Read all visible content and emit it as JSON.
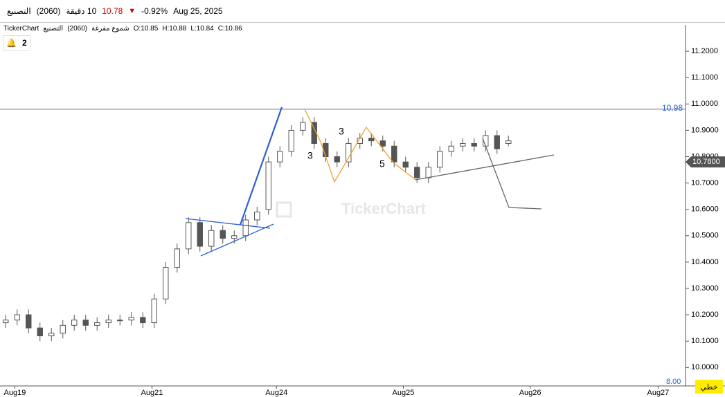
{
  "header": {
    "name": "التصنيع",
    "code": "(2060)",
    "interval": "10 دقيقة",
    "price": "10.78",
    "change": "-0.92%",
    "date": "Aug 25, 2025"
  },
  "legend": {
    "source": "TickerChart",
    "code": "(2060)",
    "name": "التصنيع",
    "style": "شموع مفرغة",
    "open": "O:10.85",
    "high": "H:10.88",
    "low": "L:10.84",
    "close": "C:10.86"
  },
  "alerts": "2",
  "watermark": "TickerChart",
  "chart_mode": "خطي",
  "chart_data": {
    "type": "candlestick",
    "color": "#555555",
    "open": [
      10.17,
      10.18,
      10.2,
      10.15,
      10.12,
      10.13,
      10.16,
      10.18,
      10.16,
      10.17,
      10.18,
      10.18,
      10.19,
      10.17,
      10.26,
      10.38,
      10.45,
      10.55,
      10.46,
      10.52,
      10.49,
      10.5,
      10.56,
      10.6,
      10.78,
      10.82,
      10.9,
      10.93,
      10.85,
      10.8,
      10.78,
      10.85,
      10.87,
      10.86,
      10.84,
      10.78,
      10.76,
      10.72,
      10.76,
      10.82,
      10.84,
      10.85,
      10.84,
      10.88,
      10.85
    ],
    "high": [
      10.2,
      10.22,
      10.22,
      10.17,
      10.15,
      10.18,
      10.2,
      10.2,
      10.19,
      10.2,
      10.2,
      10.21,
      10.21,
      10.28,
      10.4,
      10.47,
      10.57,
      10.57,
      10.54,
      10.54,
      10.52,
      10.58,
      10.61,
      10.8,
      10.84,
      10.92,
      10.95,
      10.95,
      10.87,
      10.82,
      10.87,
      10.89,
      10.89,
      10.88,
      10.86,
      10.8,
      10.78,
      10.78,
      10.84,
      10.86,
      10.87,
      10.87,
      10.9,
      10.9,
      10.88
    ],
    "low": [
      10.15,
      10.16,
      10.13,
      10.1,
      10.1,
      10.11,
      10.14,
      10.14,
      10.14,
      10.15,
      10.16,
      10.16,
      10.15,
      10.15,
      10.24,
      10.36,
      10.43,
      10.44,
      10.44,
      10.47,
      10.47,
      10.48,
      10.54,
      10.58,
      10.76,
      10.8,
      10.88,
      10.83,
      10.78,
      10.76,
      10.76,
      10.83,
      10.84,
      10.82,
      10.76,
      10.74,
      10.7,
      10.7,
      10.74,
      10.8,
      10.82,
      10.82,
      10.82,
      10.81,
      10.84
    ],
    "close": [
      10.18,
      10.2,
      10.15,
      10.12,
      10.13,
      10.16,
      10.18,
      10.16,
      10.17,
      10.18,
      10.18,
      10.19,
      10.17,
      10.26,
      10.38,
      10.45,
      10.55,
      10.46,
      10.52,
      10.49,
      10.5,
      10.56,
      10.59,
      10.78,
      10.82,
      10.9,
      10.93,
      10.85,
      10.8,
      10.78,
      10.85,
      10.87,
      10.86,
      10.84,
      10.78,
      10.76,
      10.72,
      10.76,
      10.82,
      10.84,
      10.85,
      10.84,
      10.88,
      10.83,
      10.86
    ],
    "xlim": [
      -0.5,
      59.5
    ],
    "xticks": [
      {
        "value": 0.8,
        "label": "Aug19"
      },
      {
        "value": 12.8,
        "label": "Aug21"
      },
      {
        "value": 23.7,
        "label": "Aug24"
      },
      {
        "value": 34.8,
        "label": "Aug25"
      },
      {
        "value": 45.9,
        "label": "Aug26"
      },
      {
        "value": 57.1,
        "label": "Aug27"
      }
    ],
    "ylim": [
      9.93,
      11.3
    ],
    "yticks": [
      {
        "value": 10.0,
        "label": "10.0000"
      },
      {
        "value": 10.1,
        "label": "10.1000"
      },
      {
        "value": 10.2,
        "label": "10.2000"
      },
      {
        "value": 10.3,
        "label": "10.3000"
      },
      {
        "value": 10.4,
        "label": "10.4000"
      },
      {
        "value": 10.5,
        "label": "10.5000"
      },
      {
        "value": 10.6,
        "label": "10.6000"
      },
      {
        "value": 10.7,
        "label": "10.7000"
      },
      {
        "value": 10.8,
        "label": "10.8000"
      },
      {
        "value": 10.9,
        "label": "10.9000"
      },
      {
        "value": 11.0,
        "label": "11.0000"
      },
      {
        "value": 11.1,
        "label": "11.1000"
      },
      {
        "value": 11.2,
        "label": "11.2000"
      }
    ],
    "grid": false,
    "hline": 10.98,
    "last_price": {
      "value": 10.78,
      "label": "10.7800"
    },
    "bottom_label": "8.00",
    "annotations": [
      "3",
      "3",
      "5"
    ]
  }
}
